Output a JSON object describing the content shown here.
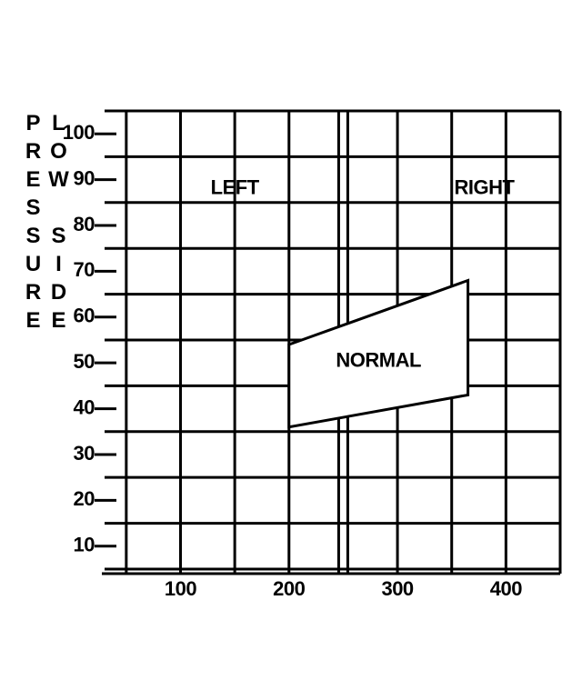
{
  "chart_data": {
    "type": "region",
    "ylabel": "LOW SIDE PRESSURE",
    "xlim": [
      30,
      450
    ],
    "ylim": [
      4,
      105
    ],
    "xticks": [
      100,
      200,
      300,
      400
    ],
    "yticks": [
      10,
      20,
      30,
      40,
      50,
      60,
      70,
      80,
      90,
      100
    ],
    "xgrid": [
      50,
      100,
      150,
      200,
      250,
      300,
      350,
      400,
      450
    ],
    "ygrid": [
      5,
      15,
      25,
      35,
      45,
      55,
      65,
      75,
      85,
      95,
      105
    ],
    "divider": 250,
    "annotations": [
      {
        "text": "LEFT",
        "x": 150,
        "y": 88
      },
      {
        "text": "RIGHT",
        "x": 380,
        "y": 88
      }
    ],
    "region": {
      "name": "NORMAL",
      "x": [
        200,
        365
      ],
      "upper": [
        54,
        68
      ],
      "lower": [
        36,
        43
      ]
    },
    "color": "#000000"
  }
}
